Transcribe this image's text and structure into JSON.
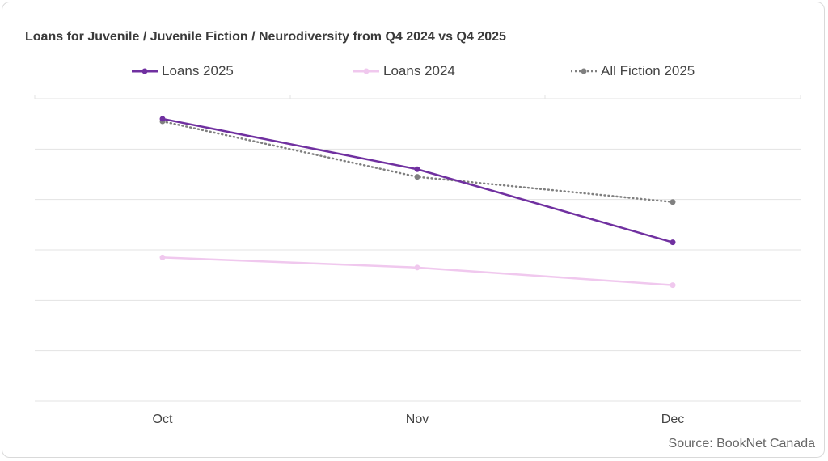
{
  "chart_data": {
    "type": "line",
    "title": "Loans for Juvenile / Juvenile Fiction / Neurodiversity from Q4 2024 vs Q4 2025",
    "categories": [
      "Oct",
      "Nov",
      "Dec"
    ],
    "series": [
      {
        "name": "Loans 2025",
        "values": [
          112,
          92,
          63
        ],
        "color": "#7030a0",
        "style": "solid"
      },
      {
        "name": "Loans 2024",
        "values": [
          57,
          53,
          46
        ],
        "color": "#f0c8ee",
        "style": "solid"
      },
      {
        "name": "All Fiction 2025",
        "values": [
          111,
          89,
          79
        ],
        "color": "#808080",
        "style": "dotted"
      }
    ],
    "ylim": [
      0,
      120
    ],
    "y_tick_labels_shown": false,
    "grid": true,
    "legend_position": "top",
    "source": "Source: BookNet Canada"
  }
}
